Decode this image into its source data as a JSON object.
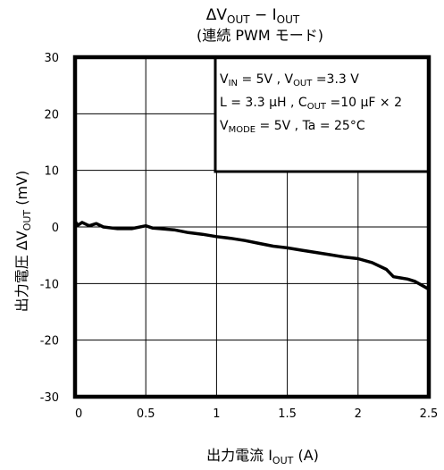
{
  "chart_data": {
    "type": "line",
    "title_line1_prefix": "ΔV",
    "title_line1_sub": "OUT",
    "title_line1_mid": " − I",
    "title_line1_sub2": "OUT",
    "title_line2": "(連続 PWM モード)",
    "ylabel_prefix": "出力電圧  ΔV",
    "ylabel_sub": "OUT",
    "ylabel_unit": "(mV)",
    "xlabel_prefix": "出力電流  I",
    "xlabel_sub": "OUT",
    "xlabel_unit": "(A)",
    "xlim": [
      0,
      2.5
    ],
    "ylim": [
      -30,
      30
    ],
    "x_ticks": [
      "0",
      "0.5",
      "1",
      "1.5",
      "2",
      "2.5"
    ],
    "y_ticks": [
      "30",
      "20",
      "10",
      "0",
      "-10",
      "-20",
      "-30"
    ],
    "grid": true,
    "series": [
      {
        "x": [
          0,
          0.02,
          0.05,
          0.1,
          0.15,
          0.2,
          0.3,
          0.4,
          0.5,
          0.55,
          0.6,
          0.7,
          0.8,
          0.9,
          1.0,
          1.1,
          1.2,
          1.3,
          1.4,
          1.5,
          1.6,
          1.7,
          1.8,
          1.9,
          2.0,
          2.1,
          2.2,
          2.25,
          2.3,
          2.35,
          2.4,
          2.45,
          2.5
        ],
        "y": [
          1,
          0.3,
          0.8,
          0.2,
          0.6,
          0,
          -0.3,
          -0.3,
          0.2,
          -0.2,
          -0.3,
          -0.5,
          -1.0,
          -1.3,
          -1.7,
          -2.0,
          -2.4,
          -2.9,
          -3.4,
          -3.7,
          -4.1,
          -4.5,
          -4.9,
          -5.3,
          -5.6,
          -6.3,
          -7.5,
          -8.8,
          -9.0,
          -9.2,
          -9.6,
          -10.3,
          -11.0
        ]
      }
    ],
    "annotation": {
      "line1": {
        "a": "V",
        "a_sub": "IN",
        "b": " = 5V , V",
        "b_sub": "OUT",
        "c": " =3.3 V"
      },
      "line2": {
        "a": "L = 3.3 μH , C",
        "a_sub": "OUT",
        "b": " =10 μF × 2"
      },
      "line3": {
        "a": "V",
        "a_sub": "MODE",
        "b": " = 5V , Ta = 25°C"
      }
    }
  }
}
